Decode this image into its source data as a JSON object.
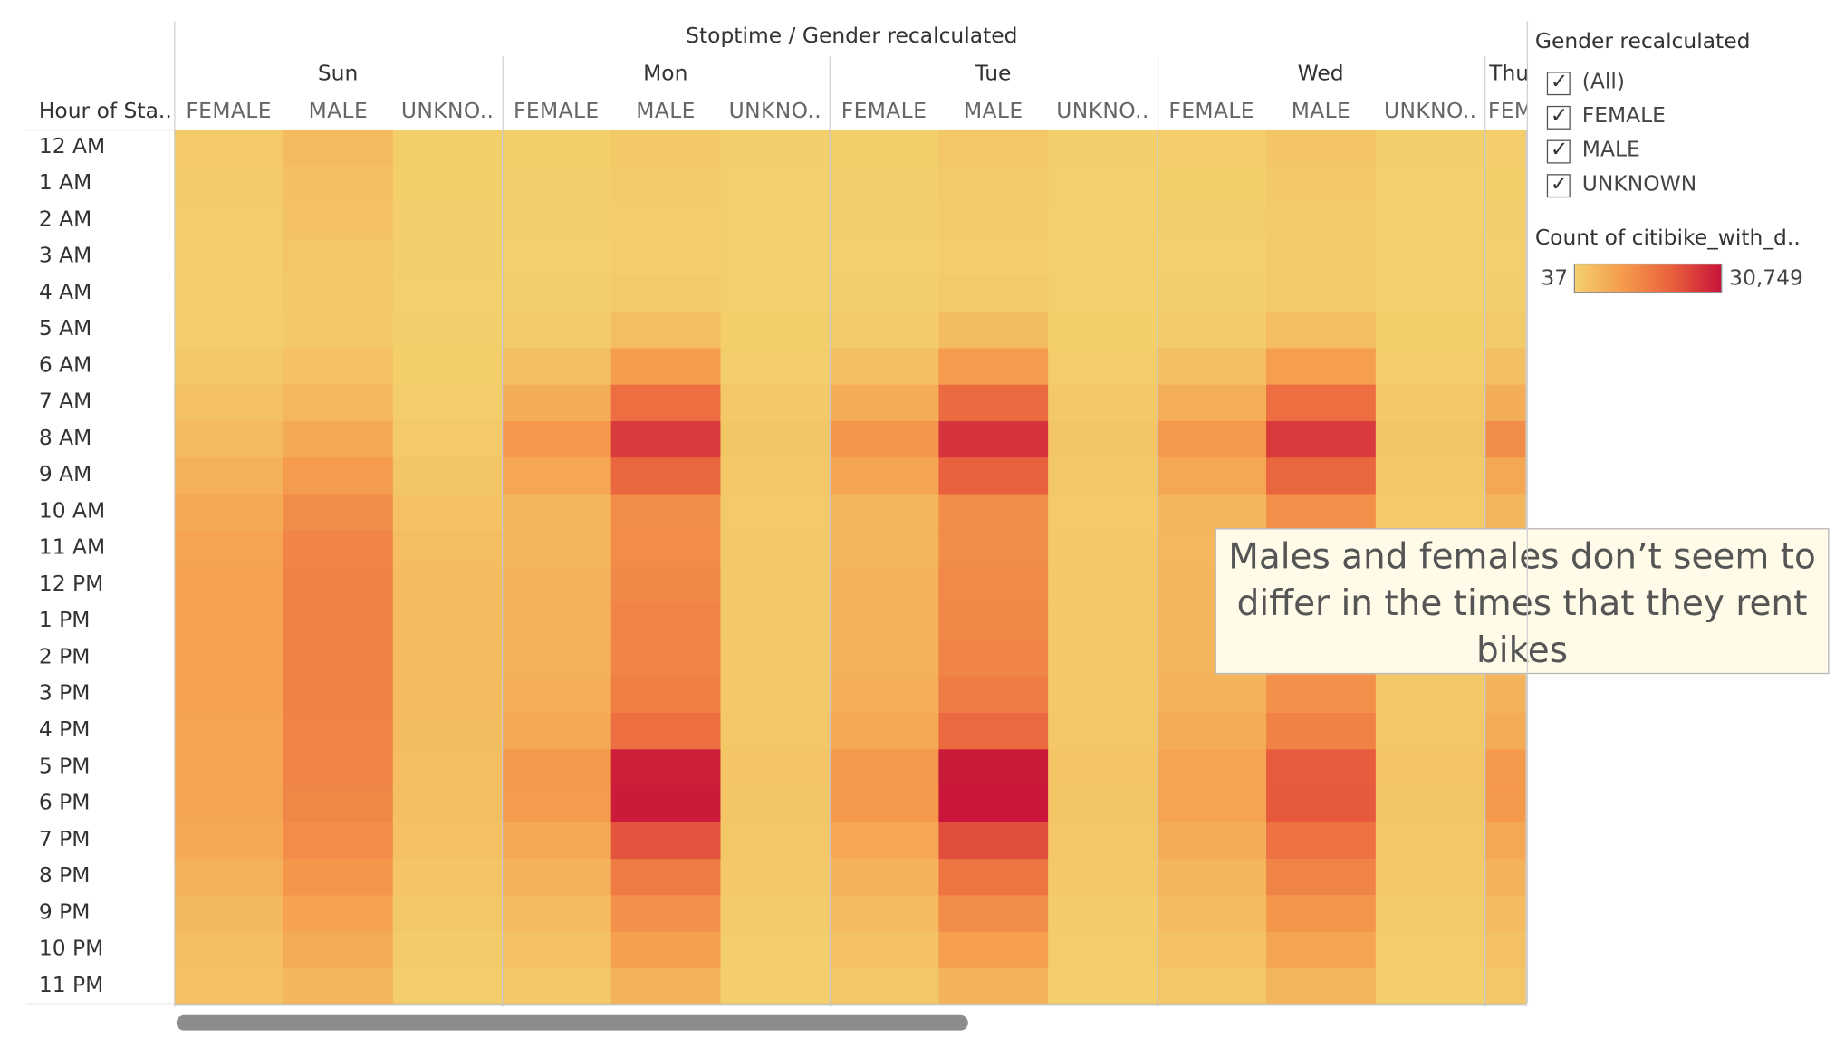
{
  "chart_data": {
    "type": "heatmap",
    "title": "Stoptime / Gender recalculated",
    "row_header": "Hour of Sta..",
    "columns": {
      "days": [
        "Sun",
        "Mon",
        "Tue",
        "Wed",
        "Thu"
      ],
      "genders_display": [
        "FEMALE",
        "MALE",
        "UNKNO.."
      ],
      "thu_partial_label": "FEM"
    },
    "hours": [
      "12 AM",
      "1 AM",
      "2 AM",
      "3 AM",
      "4 AM",
      "5 AM",
      "6 AM",
      "7 AM",
      "8 AM",
      "9 AM",
      "10 AM",
      "11 AM",
      "12 PM",
      "1 PM",
      "2 PM",
      "3 PM",
      "4 PM",
      "5 PM",
      "6 PM",
      "7 PM",
      "8 PM",
      "9 PM",
      "10 PM",
      "11 PM"
    ],
    "color_scale": {
      "min": 37,
      "max": 30749,
      "min_label": "37",
      "max_label": "30,749",
      "colors": [
        "#f3d06b",
        "#f59a4c",
        "#e9603d",
        "#c8143a"
      ]
    },
    "series": [
      {
        "name": "Sun FEMALE",
        "values": [
          1200,
          900,
          700,
          500,
          400,
          600,
          1400,
          2600,
          4200,
          6000,
          7500,
          8200,
          8600,
          8700,
          8700,
          8600,
          8400,
          8200,
          8000,
          7400,
          6000,
          4500,
          3500,
          2600
        ]
      },
      {
        "name": "Sun MALE",
        "values": [
          4200,
          3200,
          2600,
          1800,
          1300,
          1600,
          2800,
          4800,
          7200,
          10000,
          12500,
          14000,
          14500,
          14700,
          14700,
          14500,
          14300,
          14200,
          13600,
          12800,
          10800,
          8600,
          7000,
          5200
        ]
      },
      {
        "name": "Sun UNKNOWN",
        "values": [
          300,
          250,
          200,
          150,
          120,
          150,
          300,
          600,
          1200,
          1900,
          2800,
          3600,
          3900,
          4100,
          4200,
          4000,
          3800,
          3600,
          3300,
          2800,
          2100,
          1500,
          1000,
          600
        ]
      },
      {
        "name": "Mon FEMALE",
        "values": [
          300,
          200,
          150,
          120,
          200,
          800,
          3200,
          6600,
          10600,
          7800,
          5000,
          5000,
          5500,
          5800,
          5900,
          6200,
          7300,
          10200,
          10000,
          7600,
          5500,
          4000,
          2800,
          1600
        ]
      },
      {
        "name": "Mon MALE",
        "values": [
          1600,
          1000,
          700,
          700,
          1100,
          3700,
          9800,
          18000,
          25500,
          19500,
          12500,
          12800,
          13500,
          14000,
          14200,
          15000,
          18000,
          29200,
          29800,
          22200,
          16000,
          12000,
          9200,
          5600
        ]
      },
      {
        "name": "Mon UNKNOWN",
        "values": [
          150,
          100,
          80,
          60,
          80,
          250,
          700,
          1300,
          1900,
          1500,
          1200,
          1300,
          1400,
          1500,
          1500,
          1600,
          1800,
          2100,
          2000,
          1700,
          1300,
          900,
          600,
          400
        ]
      },
      {
        "name": "Tue FEMALE",
        "values": [
          300,
          200,
          150,
          120,
          200,
          800,
          3300,
          6800,
          10800,
          8000,
          5000,
          5000,
          5500,
          5800,
          5900,
          6300,
          7400,
          10500,
          10200,
          7800,
          5600,
          4100,
          2900,
          1700
        ]
      },
      {
        "name": "Tue MALE",
        "values": [
          1700,
          1100,
          750,
          700,
          1100,
          3800,
          10000,
          18500,
          26500,
          20500,
          12500,
          12600,
          13200,
          13500,
          14000,
          15500,
          19000,
          30000,
          30500,
          23000,
          16800,
          12500,
          9600,
          5800
        ]
      },
      {
        "name": "Tue UNKNOWN",
        "values": [
          150,
          100,
          80,
          60,
          80,
          250,
          700,
          1300,
          1900,
          1500,
          1200,
          1300,
          1400,
          1500,
          1500,
          1600,
          1800,
          2100,
          2000,
          1700,
          1300,
          900,
          600,
          400
        ]
      },
      {
        "name": "Wed FEMALE",
        "values": [
          400,
          250,
          180,
          130,
          200,
          800,
          3200,
          6500,
          10400,
          7600,
          5000,
          4800,
          5000,
          5200,
          5300,
          5600,
          6600,
          8200,
          8200,
          6600,
          5200,
          4000,
          2800,
          1700
        ]
      },
      {
        "name": "Wed MALE",
        "values": [
          2200,
          1500,
          1000,
          800,
          1100,
          3600,
          9600,
          18000,
          25600,
          19500,
          12200,
          11500,
          11000,
          11000,
          11200,
          11800,
          14500,
          21000,
          21500,
          17500,
          14200,
          10800,
          8400,
          5400
        ]
      },
      {
        "name": "Wed UNKNOWN",
        "values": [
          150,
          100,
          80,
          60,
          80,
          250,
          700,
          1300,
          1900,
          1500,
          1200,
          1300,
          1400,
          1500,
          1500,
          1600,
          1800,
          2100,
          2000,
          1700,
          1300,
          900,
          600,
          400
        ]
      },
      {
        "name": "Thu FEMALE",
        "values": [
          400,
          250,
          180,
          130,
          200,
          800,
          3300,
          6600,
          12500,
          7600,
          5000,
          4800,
          5000,
          5200,
          5300,
          5600,
          7000,
          10500,
          10500,
          7600,
          5500,
          4100,
          2900,
          1700
        ]
      }
    ],
    "legend": {
      "title": "Gender recalculated",
      "items": [
        "(All)",
        "FEMALE",
        "MALE",
        "UNKNOWN"
      ],
      "color_legend_title": "Count of citibike_with_d..",
      "placement": "right"
    },
    "annotation": {
      "lines": [
        "Males and females don’t seem to",
        "differ in the times that they rent",
        "bikes"
      ]
    }
  },
  "icons": {
    "checkbox": "checkmark-icon"
  }
}
